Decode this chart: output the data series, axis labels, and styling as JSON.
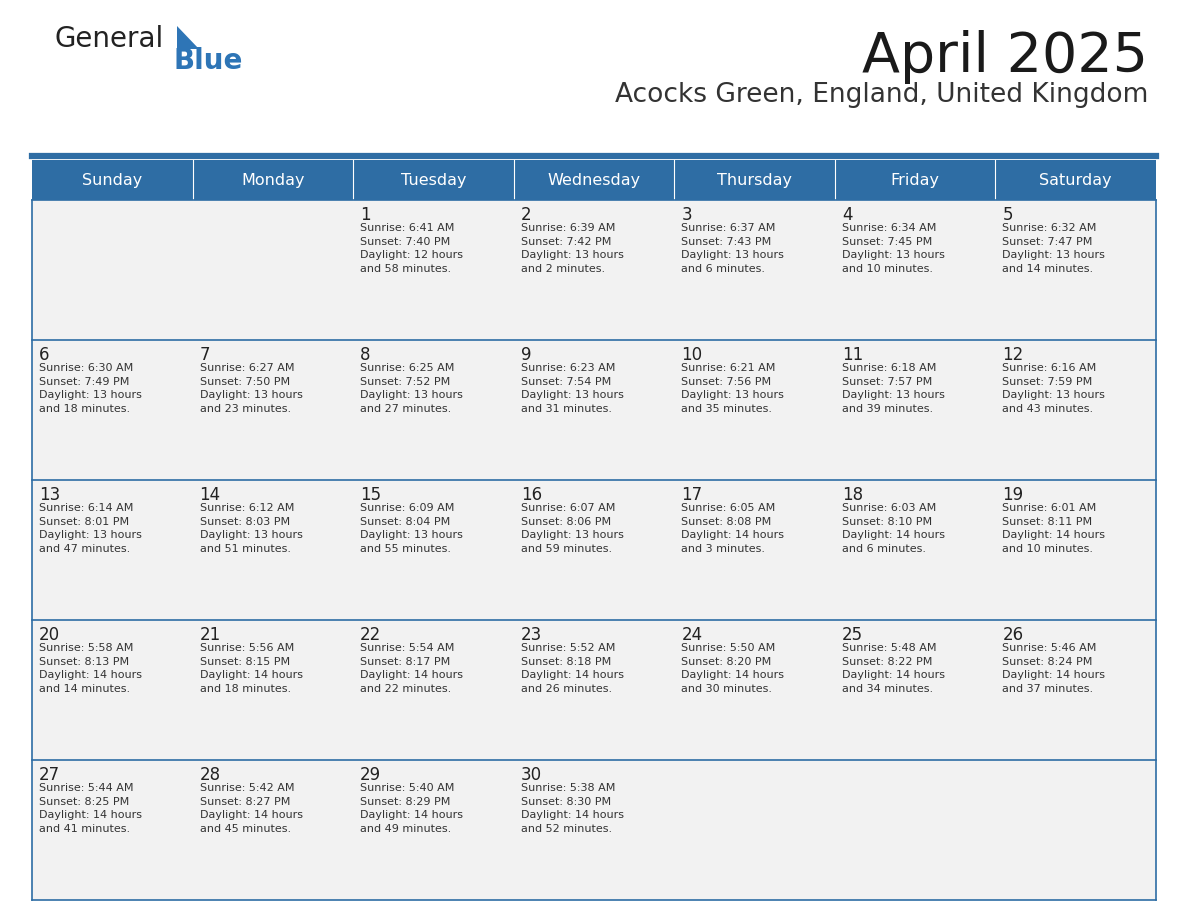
{
  "title": "April 2025",
  "subtitle": "Acocks Green, England, United Kingdom",
  "header_color": "#2e6da4",
  "header_text_color": "#ffffff",
  "cell_bg_color": "#f2f2f2",
  "border_color": "#2e6da4",
  "text_color": "#333333",
  "days_of_week": [
    "Sunday",
    "Monday",
    "Tuesday",
    "Wednesday",
    "Thursday",
    "Friday",
    "Saturday"
  ],
  "logo_color1": "#222222",
  "logo_color2": "#2e75b6",
  "calendar": [
    [
      {
        "day": "",
        "info": ""
      },
      {
        "day": "",
        "info": ""
      },
      {
        "day": "1",
        "info": "Sunrise: 6:41 AM\nSunset: 7:40 PM\nDaylight: 12 hours\nand 58 minutes."
      },
      {
        "day": "2",
        "info": "Sunrise: 6:39 AM\nSunset: 7:42 PM\nDaylight: 13 hours\nand 2 minutes."
      },
      {
        "day": "3",
        "info": "Sunrise: 6:37 AM\nSunset: 7:43 PM\nDaylight: 13 hours\nand 6 minutes."
      },
      {
        "day": "4",
        "info": "Sunrise: 6:34 AM\nSunset: 7:45 PM\nDaylight: 13 hours\nand 10 minutes."
      },
      {
        "day": "5",
        "info": "Sunrise: 6:32 AM\nSunset: 7:47 PM\nDaylight: 13 hours\nand 14 minutes."
      }
    ],
    [
      {
        "day": "6",
        "info": "Sunrise: 6:30 AM\nSunset: 7:49 PM\nDaylight: 13 hours\nand 18 minutes."
      },
      {
        "day": "7",
        "info": "Sunrise: 6:27 AM\nSunset: 7:50 PM\nDaylight: 13 hours\nand 23 minutes."
      },
      {
        "day": "8",
        "info": "Sunrise: 6:25 AM\nSunset: 7:52 PM\nDaylight: 13 hours\nand 27 minutes."
      },
      {
        "day": "9",
        "info": "Sunrise: 6:23 AM\nSunset: 7:54 PM\nDaylight: 13 hours\nand 31 minutes."
      },
      {
        "day": "10",
        "info": "Sunrise: 6:21 AM\nSunset: 7:56 PM\nDaylight: 13 hours\nand 35 minutes."
      },
      {
        "day": "11",
        "info": "Sunrise: 6:18 AM\nSunset: 7:57 PM\nDaylight: 13 hours\nand 39 minutes."
      },
      {
        "day": "12",
        "info": "Sunrise: 6:16 AM\nSunset: 7:59 PM\nDaylight: 13 hours\nand 43 minutes."
      }
    ],
    [
      {
        "day": "13",
        "info": "Sunrise: 6:14 AM\nSunset: 8:01 PM\nDaylight: 13 hours\nand 47 minutes."
      },
      {
        "day": "14",
        "info": "Sunrise: 6:12 AM\nSunset: 8:03 PM\nDaylight: 13 hours\nand 51 minutes."
      },
      {
        "day": "15",
        "info": "Sunrise: 6:09 AM\nSunset: 8:04 PM\nDaylight: 13 hours\nand 55 minutes."
      },
      {
        "day": "16",
        "info": "Sunrise: 6:07 AM\nSunset: 8:06 PM\nDaylight: 13 hours\nand 59 minutes."
      },
      {
        "day": "17",
        "info": "Sunrise: 6:05 AM\nSunset: 8:08 PM\nDaylight: 14 hours\nand 3 minutes."
      },
      {
        "day": "18",
        "info": "Sunrise: 6:03 AM\nSunset: 8:10 PM\nDaylight: 14 hours\nand 6 minutes."
      },
      {
        "day": "19",
        "info": "Sunrise: 6:01 AM\nSunset: 8:11 PM\nDaylight: 14 hours\nand 10 minutes."
      }
    ],
    [
      {
        "day": "20",
        "info": "Sunrise: 5:58 AM\nSunset: 8:13 PM\nDaylight: 14 hours\nand 14 minutes."
      },
      {
        "day": "21",
        "info": "Sunrise: 5:56 AM\nSunset: 8:15 PM\nDaylight: 14 hours\nand 18 minutes."
      },
      {
        "day": "22",
        "info": "Sunrise: 5:54 AM\nSunset: 8:17 PM\nDaylight: 14 hours\nand 22 minutes."
      },
      {
        "day": "23",
        "info": "Sunrise: 5:52 AM\nSunset: 8:18 PM\nDaylight: 14 hours\nand 26 minutes."
      },
      {
        "day": "24",
        "info": "Sunrise: 5:50 AM\nSunset: 8:20 PM\nDaylight: 14 hours\nand 30 minutes."
      },
      {
        "day": "25",
        "info": "Sunrise: 5:48 AM\nSunset: 8:22 PM\nDaylight: 14 hours\nand 34 minutes."
      },
      {
        "day": "26",
        "info": "Sunrise: 5:46 AM\nSunset: 8:24 PM\nDaylight: 14 hours\nand 37 minutes."
      }
    ],
    [
      {
        "day": "27",
        "info": "Sunrise: 5:44 AM\nSunset: 8:25 PM\nDaylight: 14 hours\nand 41 minutes."
      },
      {
        "day": "28",
        "info": "Sunrise: 5:42 AM\nSunset: 8:27 PM\nDaylight: 14 hours\nand 45 minutes."
      },
      {
        "day": "29",
        "info": "Sunrise: 5:40 AM\nSunset: 8:29 PM\nDaylight: 14 hours\nand 49 minutes."
      },
      {
        "day": "30",
        "info": "Sunrise: 5:38 AM\nSunset: 8:30 PM\nDaylight: 14 hours\nand 52 minutes."
      },
      {
        "day": "",
        "info": ""
      },
      {
        "day": "",
        "info": ""
      },
      {
        "day": "",
        "info": ""
      }
    ]
  ]
}
